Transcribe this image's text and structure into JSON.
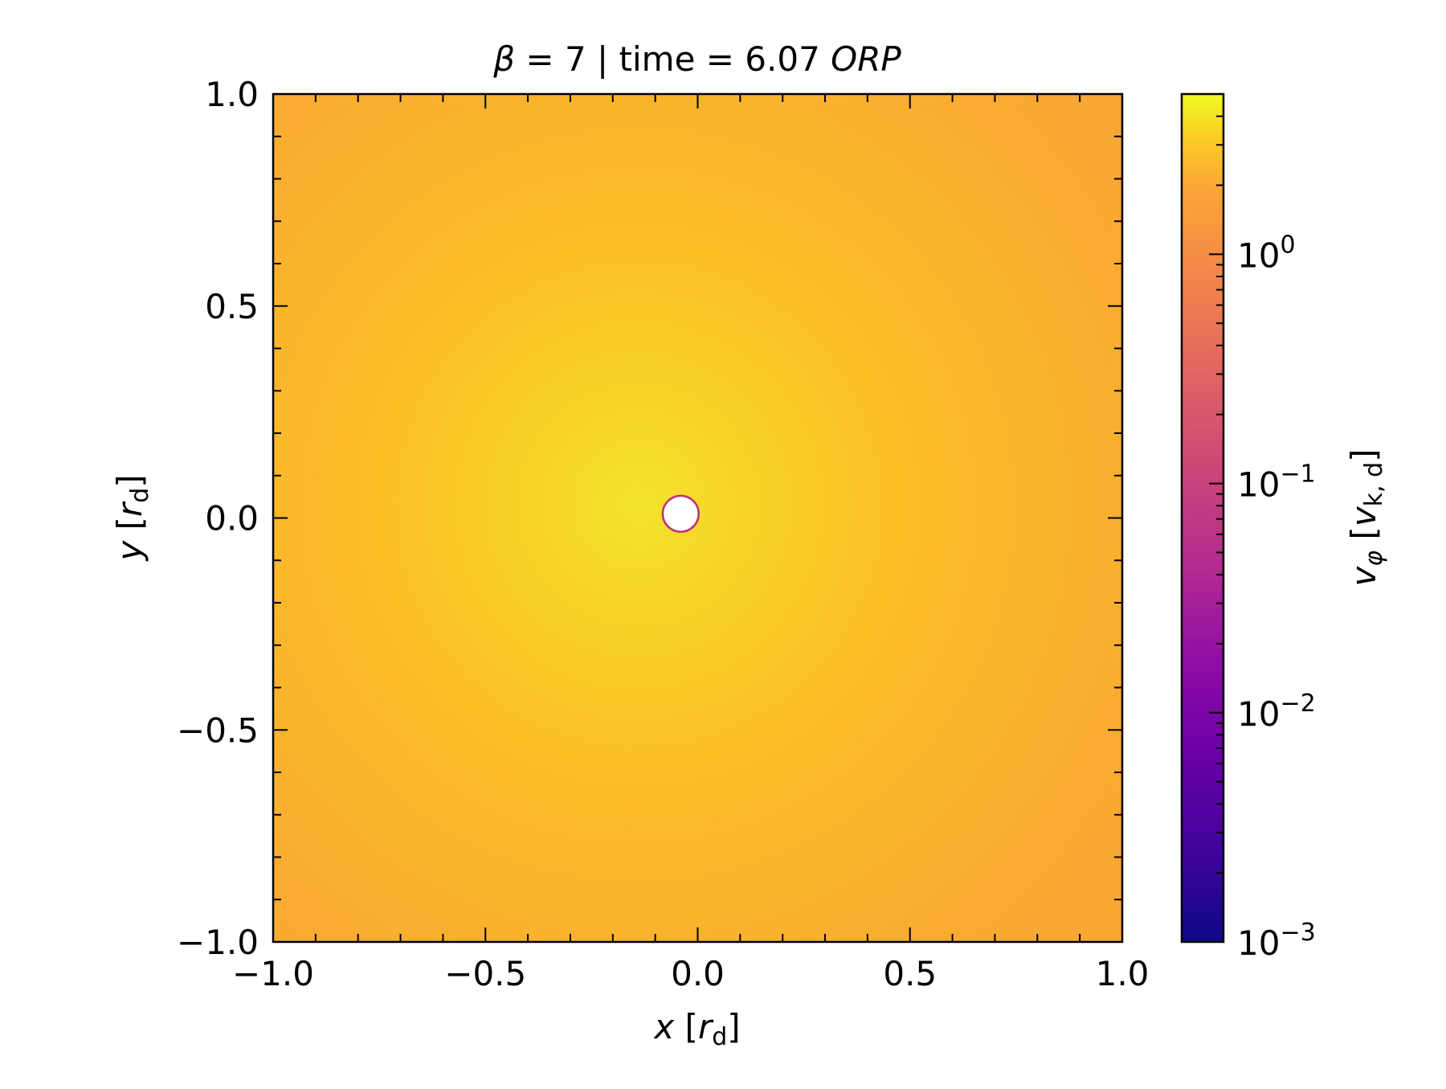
{
  "chart_data": {
    "type": "heatmap",
    "title": {
      "parts": [
        {
          "text": "β",
          "italic": true
        },
        {
          "text": " = 7 | time = 6.07 ",
          "italic": false
        },
        {
          "text": "ORP",
          "italic": true
        }
      ]
    },
    "xlabel": {
      "var": "x",
      "unit_main": "r",
      "unit_sub": "d"
    },
    "ylabel": {
      "var": "y",
      "unit_main": "r",
      "unit_sub": "d"
    },
    "xlim": [
      -1.0,
      1.0
    ],
    "ylim": [
      -1.0,
      1.0
    ],
    "x_ticks": [
      -1.0,
      -0.5,
      0.0,
      0.5,
      1.0
    ],
    "y_ticks": [
      -1.0,
      -0.5,
      0.0,
      0.5,
      1.0
    ],
    "x_tick_labels": [
      "−1.0",
      "−0.5",
      "0.0",
      "0.5",
      "1.0"
    ],
    "y_tick_labels": [
      "−1.0",
      "−0.5",
      "0.0",
      "0.5",
      "1.0"
    ],
    "minor_tick_step": 0.1,
    "colormap": "plasma",
    "colorbar": {
      "scale": "log",
      "range": [
        0.001,
        5.0
      ],
      "ticks": [
        0.001,
        0.01,
        0.1,
        1.0
      ],
      "tick_labels": [
        {
          "base": "10",
          "exp": "−3"
        },
        {
          "base": "10",
          "exp": "−2"
        },
        {
          "base": "10",
          "exp": "−1"
        },
        {
          "base": "10",
          "exp": "0"
        }
      ],
      "label": {
        "var": "v",
        "var_sub": "φ",
        "unit_main": "v",
        "unit_sub": "k, d"
      }
    },
    "field": {
      "description_values": "azimuthal velocity, roughly uniform",
      "peak_value": 3.0,
      "peak_center": [
        -0.14,
        0.03
      ],
      "background_value": 1.6,
      "inner_hole_center": [
        -0.04,
        0.01
      ],
      "inner_hole_radius": 0.04
    },
    "grid": false
  },
  "colors": {
    "background": "#ffffff",
    "axis": "#000000",
    "field_edge": "#f9a833",
    "field_mid": "#fbbf26",
    "field_peak": "#f2e52a",
    "hole": "#ffffff",
    "hole_rim": "#b8327a"
  }
}
